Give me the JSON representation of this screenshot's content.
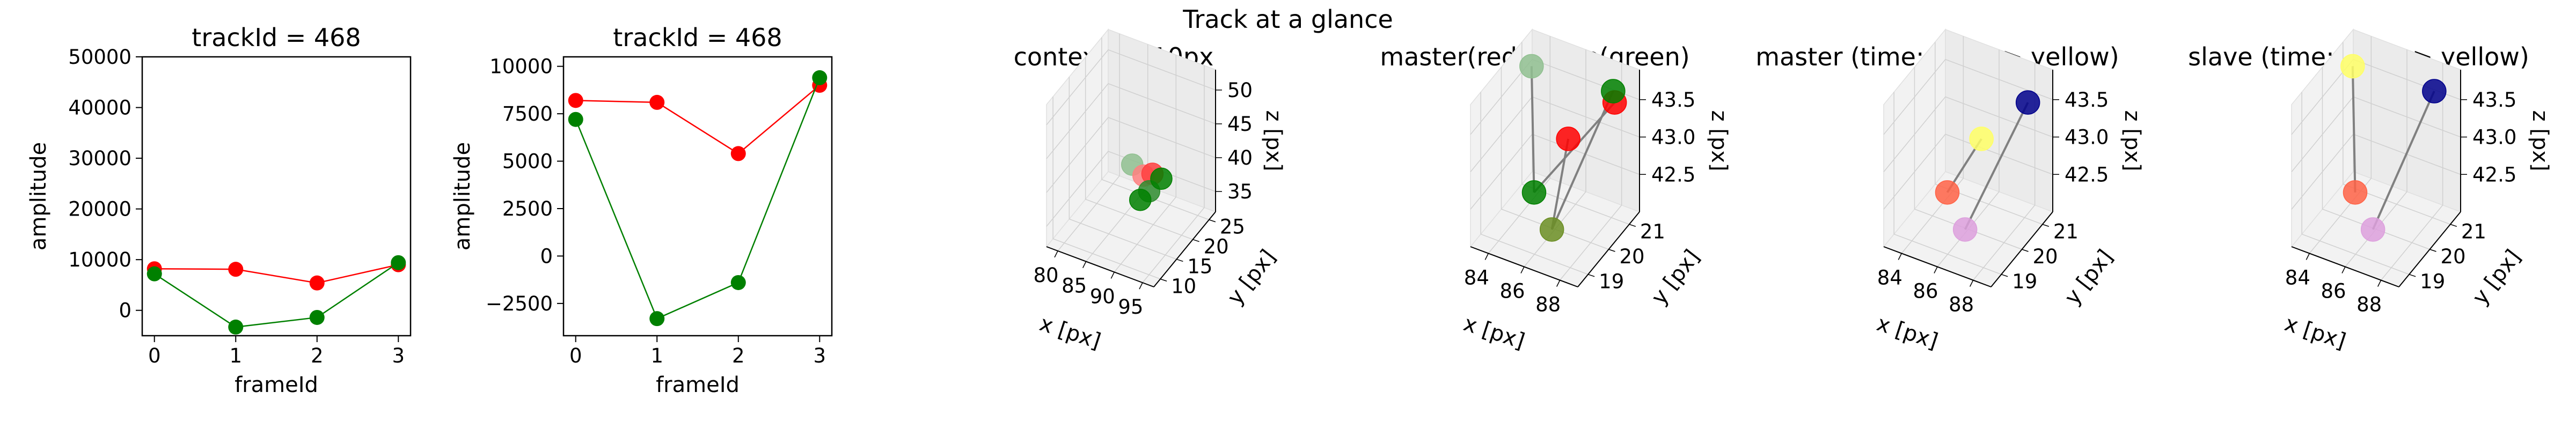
{
  "suptitle": "Track at a glance",
  "panels2d": [
    {
      "title": "trackId = 468",
      "xlabel": "frameId",
      "ylabel": "amplitude",
      "xticks": [
        "0",
        "1",
        "2",
        "3"
      ],
      "yticks": [
        "0",
        "10000",
        "20000",
        "30000",
        "40000",
        "50000"
      ]
    },
    {
      "title": "trackId = 468",
      "xlabel": "frameId",
      "ylabel": "amplitude",
      "xticks": [
        "0",
        "1",
        "2",
        "3"
      ],
      "yticks": [
        "−2500",
        "0",
        "2500",
        "5000",
        "7500",
        "10000"
      ]
    }
  ],
  "panels3d": [
    {
      "title": "context +- 10px",
      "xlabel": "x [px]",
      "ylabel": "y [px]",
      "zlabel": "z [px]",
      "xticks": [
        "80",
        "85",
        "90",
        "95"
      ],
      "yticks": [
        "10",
        "15",
        "20",
        "25"
      ],
      "zticks": [
        "35",
        "40",
        "45",
        "50"
      ]
    },
    {
      "title": "master(red) slave(green)",
      "xlabel": "x [px]",
      "ylabel": "y [px]",
      "zlabel": "z [px]",
      "xticks": [
        "84",
        "86",
        "88"
      ],
      "yticks": [
        "19",
        "20",
        "21"
      ],
      "zticks": [
        "42.5",
        "43.0",
        "43.5"
      ]
    },
    {
      "title": "master (time: blue -> yellow)",
      "xlabel": "x [px]",
      "ylabel": "y [px]",
      "zlabel": "z [px]",
      "xticks": [
        "84",
        "86",
        "88"
      ],
      "yticks": [
        "19",
        "20",
        "21"
      ],
      "zticks": [
        "42.5",
        "43.0",
        "43.5"
      ]
    },
    {
      "title": "slave (time: blue -> yellow)",
      "xlabel": "x [px]",
      "ylabel": "y [px]",
      "zlabel": "z [px]",
      "xticks": [
        "84",
        "86",
        "88"
      ],
      "yticks": [
        "19",
        "20",
        "21"
      ],
      "zticks": [
        "42.5",
        "43.0",
        "43.5"
      ]
    }
  ],
  "colors": {
    "master": "#ff0000",
    "slave": "#008000",
    "connector": "#808080",
    "time_start": "#00008b",
    "time_end": "#ffff66",
    "pane": "#f2f2f2"
  },
  "chart_data": [
    {
      "type": "line",
      "x": [
        0,
        1,
        2,
        3
      ],
      "ylim": [
        -5000,
        50000
      ],
      "series": [
        {
          "color": "#ff0000",
          "values": [
            8200,
            8100,
            5400,
            9000
          ]
        },
        {
          "color": "#008000",
          "values": [
            7200,
            -3300,
            -1400,
            9400
          ]
        }
      ]
    },
    {
      "type": "line",
      "x": [
        0,
        1,
        2,
        3
      ],
      "ylim": [
        -4200,
        10500
      ],
      "series": [
        {
          "color": "#ff0000",
          "values": [
            8200,
            8100,
            5400,
            9000
          ]
        },
        {
          "color": "#008000",
          "values": [
            7200,
            -3300,
            -1400,
            9400
          ]
        }
      ]
    },
    {
      "type": "scatter",
      "points": [
        {
          "color": "#90c090",
          "x": 88,
          "y": 17,
          "z": 42
        },
        {
          "color": "#ff8080",
          "x": 90,
          "y": 17,
          "z": 41
        },
        {
          "color": "#ff4040",
          "x": 91,
          "y": 18,
          "z": 41
        },
        {
          "color": "#2e8b2e",
          "x": 91,
          "y": 17,
          "z": 39
        },
        {
          "color": "#008000",
          "x": 90,
          "y": 16,
          "z": 38
        },
        {
          "color": "#008000",
          "x": 92,
          "y": 19,
          "z": 40
        }
      ]
    },
    {
      "type": "scatter",
      "points": [
        {
          "color": "#ff0000",
          "x": 87.2,
          "y": 19.6,
          "z": 43.45
        },
        {
          "color": "#ff0000",
          "x": 88.3,
          "y": 20.9,
          "z": 43.6
        },
        {
          "color": "#008000",
          "x": 84.6,
          "y": 20.2,
          "z": 42.3
        },
        {
          "color": "#6b8e23",
          "x": 86.4,
          "y": 19.5,
          "z": 42.2
        },
        {
          "color": "#90c090",
          "x": 84.0,
          "y": 20.6,
          "z": 43.8
        },
        {
          "color": "#008000",
          "x": 88.1,
          "y": 21.0,
          "z": 43.7
        }
      ]
    },
    {
      "type": "scatter",
      "points": [
        {
          "color": "#ffff66",
          "x": 87.2,
          "y": 19.6,
          "z": 43.45
        },
        {
          "color": "#00008b",
          "x": 88.3,
          "y": 20.9,
          "z": 43.6
        },
        {
          "color": "#ff6347",
          "x": 84.6,
          "y": 20.2,
          "z": 42.3
        },
        {
          "color": "#dda0dd",
          "x": 86.4,
          "y": 19.5,
          "z": 42.2
        }
      ]
    },
    {
      "type": "scatter",
      "points": [
        {
          "color": "#ffff66",
          "x": 84.0,
          "y": 20.6,
          "z": 43.8
        },
        {
          "color": "#00008b",
          "x": 88.1,
          "y": 21.0,
          "z": 43.7
        },
        {
          "color": "#ff6347",
          "x": 84.6,
          "y": 20.2,
          "z": 42.3
        },
        {
          "color": "#dda0dd",
          "x": 86.4,
          "y": 19.5,
          "z": 42.2
        }
      ]
    }
  ]
}
